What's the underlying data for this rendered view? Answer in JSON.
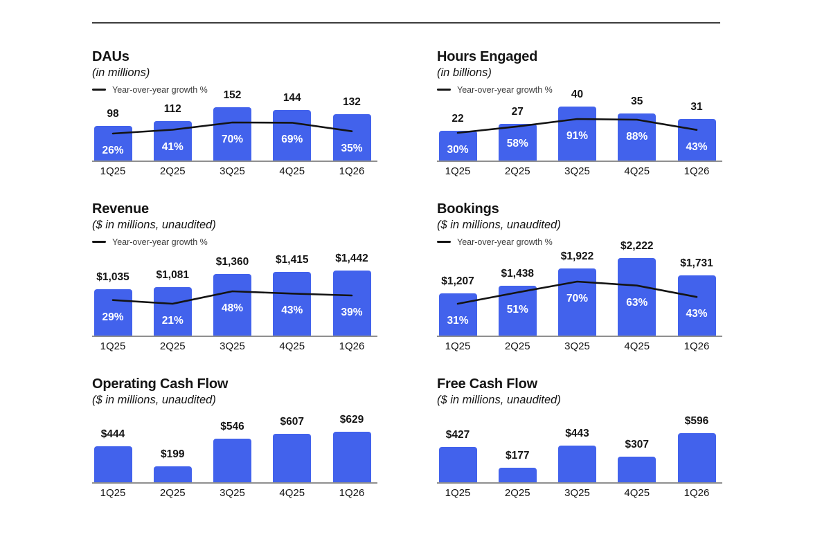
{
  "colors": {
    "bar_blue": "#4262ec",
    "line_black": "#141414",
    "axis_gray": "#8f8f8f",
    "divider_gray": "#3c3c3c",
    "text_dark": "#141414",
    "text_muted": "#3c3c3c",
    "label_white": "#ffffff"
  },
  "chart_data": [
    {
      "type": "bar+line",
      "title": "DAUs",
      "subtitle": "(in millions)",
      "legend": "Year-over-year growth %",
      "categories": [
        "1Q25",
        "2Q25",
        "3Q25",
        "4Q25",
        "1Q26"
      ],
      "axes": "hidden",
      "legend_position": "top-left",
      "series": [
        {
          "name": "DAUs",
          "type": "bar",
          "values": [
            98,
            112,
            152,
            144,
            132
          ],
          "labels": [
            "98",
            "112",
            "152",
            "144",
            "132"
          ]
        },
        {
          "name": "Year-over-year growth %",
          "type": "line",
          "unit": "%",
          "values": [
            26,
            41,
            70,
            69,
            35
          ],
          "labels": [
            "26%",
            "41%",
            "70%",
            "69%",
            "35%"
          ]
        }
      ]
    },
    {
      "type": "bar+line",
      "title": "Hours Engaged",
      "subtitle": "(in billions)",
      "legend": "Year-over-year growth %",
      "categories": [
        "1Q25",
        "2Q25",
        "3Q25",
        "4Q25",
        "1Q26"
      ],
      "axes": "hidden",
      "legend_position": "top-left",
      "series": [
        {
          "name": "Hours Engaged",
          "type": "bar",
          "values": [
            22,
            27,
            40,
            35,
            31
          ],
          "labels": [
            "22",
            "27",
            "40",
            "35",
            "31"
          ]
        },
        {
          "name": "Year-over-year growth %",
          "type": "line",
          "unit": "%",
          "values": [
            30,
            58,
            91,
            88,
            43
          ],
          "labels": [
            "30%",
            "58%",
            "91%",
            "88%",
            "43%"
          ]
        }
      ]
    },
    {
      "type": "bar+line",
      "title": "Revenue",
      "subtitle": "($ in millions, unaudited)",
      "legend": "Year-over-year growth %",
      "categories": [
        "1Q25",
        "2Q25",
        "3Q25",
        "4Q25",
        "1Q26"
      ],
      "axes": "hidden",
      "legend_position": "top-left",
      "series": [
        {
          "name": "Revenue",
          "type": "bar",
          "values": [
            1035,
            1081,
            1360,
            1415,
            1442
          ],
          "labels": [
            "$1,035",
            "$1,081",
            "$1,360",
            "$1,415",
            "$1,442"
          ]
        },
        {
          "name": "Year-over-year growth %",
          "type": "line",
          "unit": "%",
          "values": [
            29,
            21,
            48,
            43,
            39
          ],
          "labels": [
            "29%",
            "21%",
            "48%",
            "43%",
            "39%"
          ]
        }
      ]
    },
    {
      "type": "bar+line",
      "title": "Bookings",
      "subtitle": "($ in millions, unaudited)",
      "legend": "Year-over-year growth %",
      "categories": [
        "1Q25",
        "2Q25",
        "3Q25",
        "4Q25",
        "1Q26"
      ],
      "axes": "hidden",
      "legend_position": "top-left",
      "series": [
        {
          "name": "Bookings",
          "type": "bar",
          "values": [
            1207,
            1438,
            1922,
            2222,
            1731
          ],
          "labels": [
            "$1,207",
            "$1,438",
            "$1,922",
            "$2,222",
            "$1,731"
          ]
        },
        {
          "name": "Year-over-year growth %",
          "type": "line",
          "unit": "%",
          "values": [
            31,
            51,
            70,
            63,
            43
          ],
          "labels": [
            "31%",
            "51%",
            "70%",
            "63%",
            "43%"
          ]
        }
      ]
    },
    {
      "type": "bar",
      "title": "Operating Cash Flow",
      "subtitle": "($ in millions, unaudited)",
      "categories": [
        "1Q25",
        "2Q25",
        "3Q25",
        "4Q25",
        "1Q26"
      ],
      "axes": "hidden",
      "series": [
        {
          "name": "Operating Cash Flow",
          "type": "bar",
          "values": [
            444,
            199,
            546,
            607,
            629
          ],
          "labels": [
            "$444",
            "$199",
            "$546",
            "$607",
            "$629"
          ]
        }
      ]
    },
    {
      "type": "bar",
      "title": "Free Cash Flow",
      "subtitle": "($ in millions, unaudited)",
      "categories": [
        "1Q25",
        "2Q25",
        "3Q25",
        "4Q25",
        "1Q26"
      ],
      "axes": "hidden",
      "series": [
        {
          "name": "Free Cash Flow",
          "type": "bar",
          "values": [
            427,
            177,
            443,
            307,
            596
          ],
          "labels": [
            "$427",
            "$177",
            "$443",
            "$307",
            "$596"
          ]
        }
      ]
    }
  ]
}
